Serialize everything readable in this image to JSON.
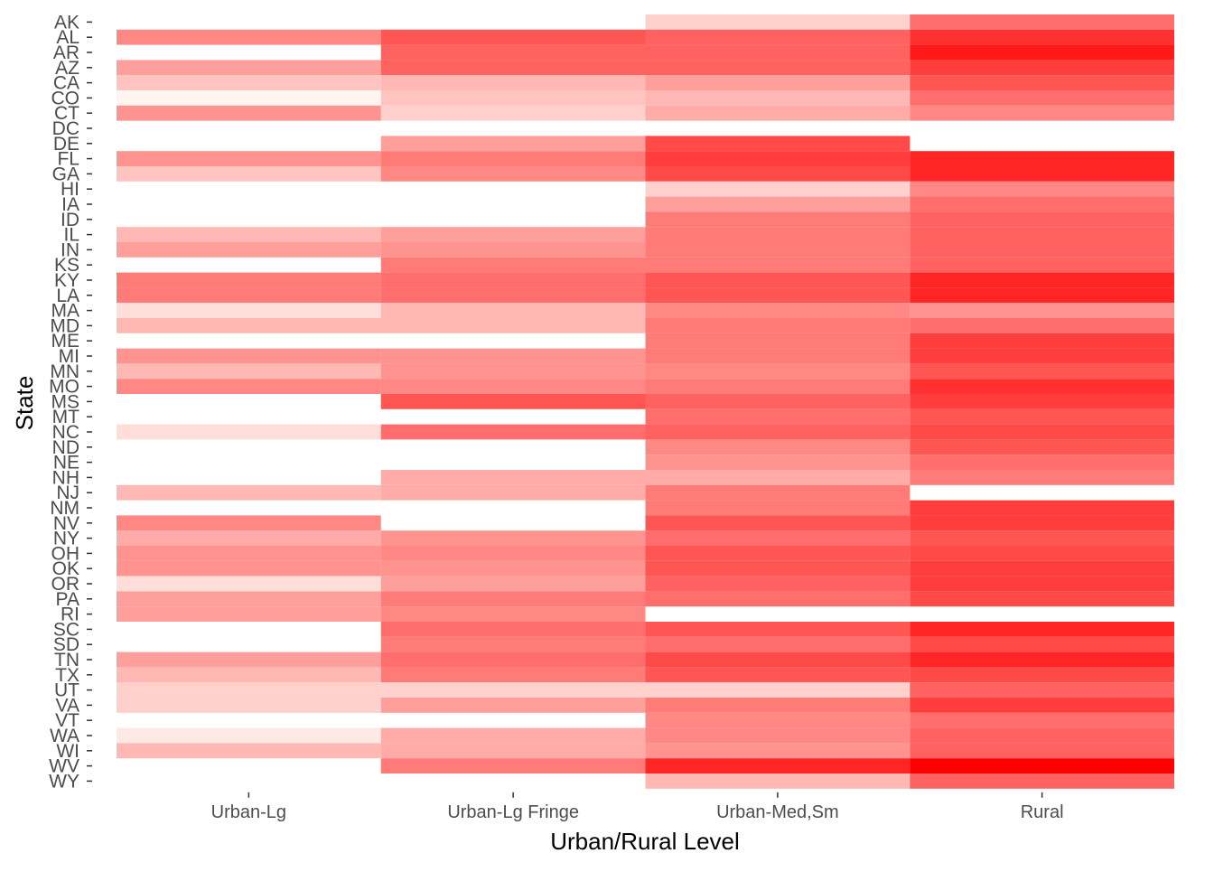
{
  "chart_data": {
    "type": "heatmap",
    "title": "",
    "xlabel": "Urban/Rural Level",
    "ylabel": "State",
    "x_categories": [
      "Urban-Lg",
      "Urban-Lg Fringe",
      "Urban-Med,Sm",
      "Rural"
    ],
    "y_categories": [
      "AK",
      "AL",
      "AR",
      "AZ",
      "CA",
      "CO",
      "CT",
      "DC",
      "DE",
      "FL",
      "GA",
      "HI",
      "IA",
      "ID",
      "IL",
      "IN",
      "KS",
      "KY",
      "LA",
      "MA",
      "MD",
      "ME",
      "MI",
      "MN",
      "MO",
      "MS",
      "MT",
      "NC",
      "ND",
      "NE",
      "NH",
      "NJ",
      "NM",
      "NV",
      "NY",
      "OH",
      "OK",
      "OR",
      "PA",
      "RI",
      "SC",
      "SD",
      "TN",
      "TX",
      "UT",
      "VA",
      "VT",
      "WA",
      "WI",
      "WV",
      "WY"
    ],
    "value_scale": "relative intensity 0 (pale) to 1 (deep red); null = no data",
    "color_low": "#fff5f0",
    "color_high": "#ff0000",
    "legend": "none",
    "grid": false,
    "values": [
      [
        null,
        null,
        0.15,
        0.55
      ],
      [
        0.45,
        0.65,
        0.6,
        0.8
      ],
      [
        null,
        0.6,
        0.6,
        0.9
      ],
      [
        0.35,
        0.6,
        0.6,
        0.75
      ],
      [
        0.2,
        0.25,
        0.35,
        0.65
      ],
      [
        0.0,
        0.2,
        0.25,
        0.55
      ],
      [
        0.4,
        0.15,
        0.3,
        0.45
      ],
      [
        null,
        null,
        null,
        null
      ],
      [
        null,
        0.35,
        0.7,
        null
      ],
      [
        0.4,
        0.5,
        0.75,
        0.85
      ],
      [
        0.2,
        0.45,
        0.7,
        0.85
      ],
      [
        null,
        null,
        0.15,
        0.45
      ],
      [
        null,
        null,
        0.35,
        0.55
      ],
      [
        null,
        null,
        0.5,
        0.6
      ],
      [
        0.25,
        0.35,
        0.5,
        0.6
      ],
      [
        0.35,
        0.4,
        0.5,
        0.6
      ],
      [
        null,
        0.5,
        0.5,
        0.6
      ],
      [
        0.5,
        0.55,
        0.65,
        0.85
      ],
      [
        0.5,
        0.55,
        0.65,
        0.85
      ],
      [
        0.1,
        0.25,
        0.45,
        0.4
      ],
      [
        0.25,
        0.25,
        0.5,
        0.55
      ],
      [
        null,
        null,
        0.5,
        0.75
      ],
      [
        0.4,
        0.4,
        0.5,
        0.75
      ],
      [
        0.25,
        0.4,
        0.45,
        0.65
      ],
      [
        0.45,
        0.45,
        0.5,
        0.8
      ],
      [
        null,
        0.65,
        0.6,
        0.75
      ],
      [
        null,
        null,
        0.55,
        0.65
      ],
      [
        0.1,
        0.55,
        0.6,
        0.7
      ],
      [
        null,
        null,
        0.45,
        0.65
      ],
      [
        null,
        null,
        0.4,
        0.55
      ],
      [
        null,
        0.3,
        0.3,
        0.5
      ],
      [
        0.25,
        0.3,
        0.5,
        null
      ],
      [
        null,
        null,
        0.5,
        0.75
      ],
      [
        0.45,
        null,
        0.65,
        0.75
      ],
      [
        0.3,
        0.4,
        0.55,
        0.65
      ],
      [
        0.4,
        0.45,
        0.65,
        0.7
      ],
      [
        0.4,
        0.4,
        0.65,
        0.75
      ],
      [
        0.1,
        0.35,
        0.6,
        0.75
      ],
      [
        0.35,
        0.5,
        0.55,
        0.7
      ],
      [
        0.35,
        0.45,
        null,
        null
      ],
      [
        null,
        0.55,
        0.65,
        0.85
      ],
      [
        null,
        0.5,
        0.55,
        0.7
      ],
      [
        0.35,
        0.55,
        0.7,
        0.85
      ],
      [
        0.25,
        0.5,
        0.65,
        0.7
      ],
      [
        0.15,
        0.15,
        0.15,
        0.6
      ],
      [
        0.15,
        0.35,
        0.5,
        0.75
      ],
      [
        null,
        null,
        0.45,
        0.55
      ],
      [
        0.05,
        0.3,
        0.45,
        0.6
      ],
      [
        0.25,
        0.3,
        0.4,
        0.6
      ],
      [
        null,
        0.5,
        0.85,
        1.0
      ],
      [
        null,
        null,
        0.25,
        0.6
      ]
    ]
  }
}
